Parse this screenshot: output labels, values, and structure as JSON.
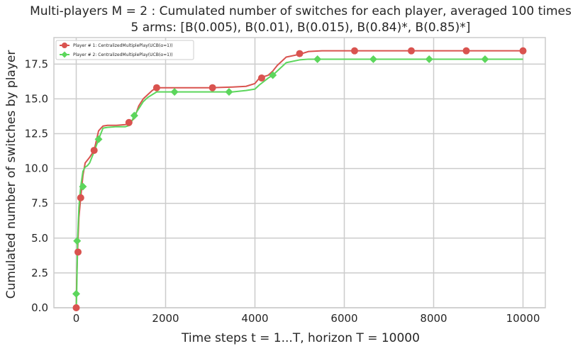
{
  "chart_data": {
    "type": "line",
    "title": "Multi-players M = 2 : Cumulated number of switches for each player, averaged 100 times",
    "subtitle": "5 arms: [B(0.005), B(0.01), B(0.015), B(0.84)*, B(0.85)*]",
    "xlabel": "Time steps t = 1...T, horizon T = 10000",
    "ylabel": "Cumulated number of switches by player",
    "xlim": [
      -500,
      10500
    ],
    "ylim": [
      0,
      19.4
    ],
    "xticks": [
      0,
      2000,
      4000,
      6000,
      8000,
      10000
    ],
    "xtick_labels": [
      "0",
      "2000",
      "4000",
      "6000",
      "8000",
      "10000"
    ],
    "yticks": [
      0,
      2.5,
      5,
      7.5,
      10,
      12.5,
      15,
      17.5
    ],
    "ytick_labels": [
      "0.0",
      "2.5",
      "5.0",
      "7.5",
      "10.0",
      "12.5",
      "15.0",
      "17.5"
    ],
    "grid": true,
    "legend_position": "top-left",
    "series": [
      {
        "name": "Player # 1: CentralizedMultiplePlay(UCB(α=1))",
        "color": "#d9534f",
        "marker": "circle",
        "x": [
          0,
          10,
          30,
          60,
          100,
          150,
          200,
          250,
          300,
          400,
          500,
          600,
          700,
          900,
          1100,
          1200,
          1300,
          1400,
          1500,
          1600,
          1700,
          1800,
          2000,
          2500,
          3000,
          3500,
          3800,
          4000,
          4100,
          4300,
          4400,
          4500,
          4600,
          4700,
          5000,
          5200,
          5500,
          6000,
          7000,
          8000,
          9000,
          10000
        ],
        "y": [
          0,
          2.0,
          4.0,
          6.5,
          7.9,
          9.5,
          10.4,
          10.6,
          10.8,
          11.3,
          12.7,
          13.05,
          13.1,
          13.1,
          13.15,
          13.3,
          13.6,
          14.5,
          15.0,
          15.3,
          15.6,
          15.8,
          15.8,
          15.8,
          15.8,
          15.85,
          15.9,
          16.1,
          16.5,
          16.7,
          17.0,
          17.4,
          17.7,
          18.0,
          18.2,
          18.4,
          18.45,
          18.45,
          18.45,
          18.45,
          18.45,
          18.45
        ],
        "marker_x": [
          0,
          40,
          100,
          400,
          1180,
          1800,
          3050,
          4150,
          5000,
          6230,
          7500,
          8730,
          10000
        ],
        "marker_y": [
          0,
          4.0,
          7.9,
          11.3,
          13.3,
          15.8,
          15.8,
          16.5,
          18.25,
          18.45,
          18.45,
          18.45,
          18.45
        ]
      },
      {
        "name": "Player # 2: CentralizedMultiplePlay(UCB(α=1))",
        "color": "#5cd65c",
        "marker": "diamond",
        "x": [
          0,
          10,
          30,
          60,
          100,
          150,
          200,
          250,
          300,
          400,
          500,
          600,
          700,
          900,
          1100,
          1200,
          1300,
          1400,
          1500,
          1600,
          1700,
          1800,
          2000,
          2500,
          3000,
          3500,
          3800,
          4000,
          4100,
          4300,
          4400,
          4500,
          4600,
          4700,
          5000,
          5200,
          5500,
          6000,
          7000,
          8000,
          9000,
          10000
        ],
        "y": [
          0,
          1.0,
          4.8,
          7.2,
          8.7,
          9.8,
          10.1,
          10.2,
          10.4,
          11.2,
          12.1,
          12.9,
          12.95,
          13.0,
          13.0,
          13.1,
          13.8,
          14.3,
          14.8,
          15.1,
          15.3,
          15.5,
          15.5,
          15.5,
          15.5,
          15.5,
          15.6,
          15.7,
          16.0,
          16.5,
          16.7,
          17.0,
          17.3,
          17.6,
          17.8,
          17.85,
          17.85,
          17.85,
          17.85,
          17.85,
          17.85,
          17.85
        ],
        "marker_x": [
          0,
          20,
          150,
          500,
          1300,
          2200,
          3420,
          4400,
          5400,
          6650,
          7900,
          9150
        ],
        "marker_y": [
          1.0,
          4.8,
          8.7,
          12.1,
          13.8,
          15.5,
          15.5,
          16.7,
          17.85,
          17.85,
          17.85,
          17.85
        ]
      }
    ]
  }
}
